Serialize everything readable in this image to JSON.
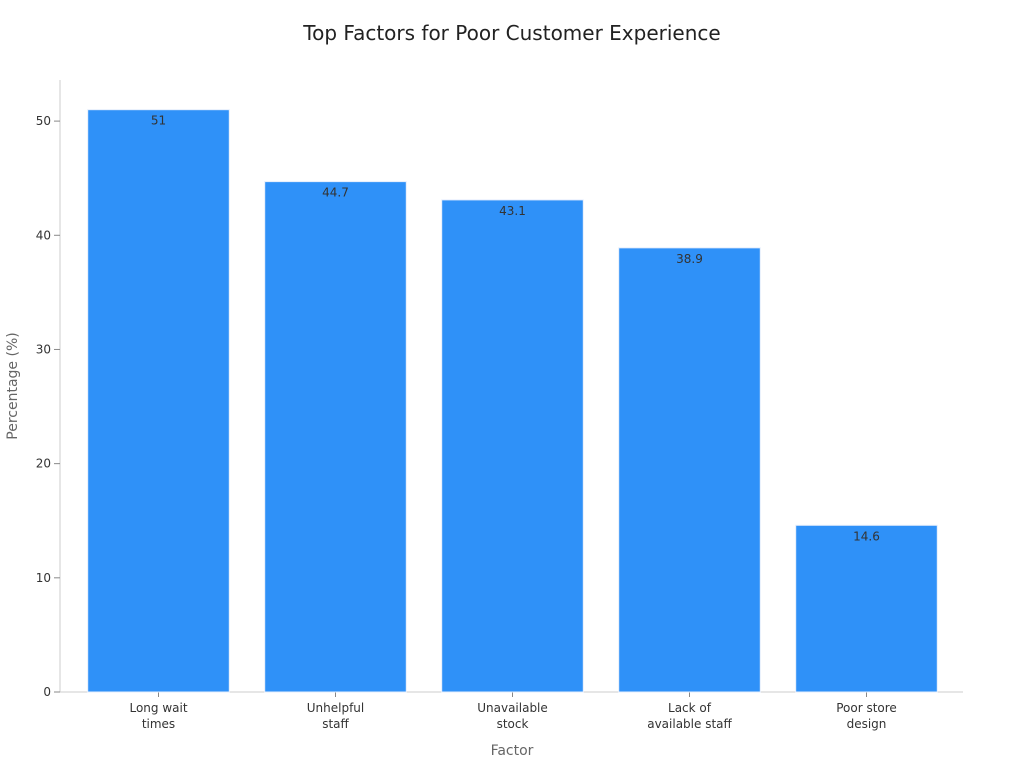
{
  "chart_data": {
    "type": "bar",
    "title": "Top Factors for Poor Customer Experience",
    "xlabel": "Factor",
    "ylabel": "Percentage (%)",
    "categories": [
      [
        "Long wait",
        "times"
      ],
      [
        "Unhelpful",
        "staff"
      ],
      [
        "Unavailable",
        "stock"
      ],
      [
        "Lack of",
        "available staff"
      ],
      [
        "Poor store",
        "design"
      ]
    ],
    "values": [
      51,
      44.7,
      43.1,
      38.9,
      14.6
    ],
    "data_labels": [
      "51",
      "44.7",
      "43.1",
      "38.9",
      "14.6"
    ],
    "ylim": [
      0,
      53.6
    ],
    "yticks": [
      0,
      10,
      20,
      30,
      40,
      50
    ],
    "grid": false,
    "legend": "none",
    "colors": {
      "bar": "#2f91f8",
      "bar_edge": "#e6eefc",
      "text": "#333333",
      "axis": "#cccccc"
    }
  }
}
